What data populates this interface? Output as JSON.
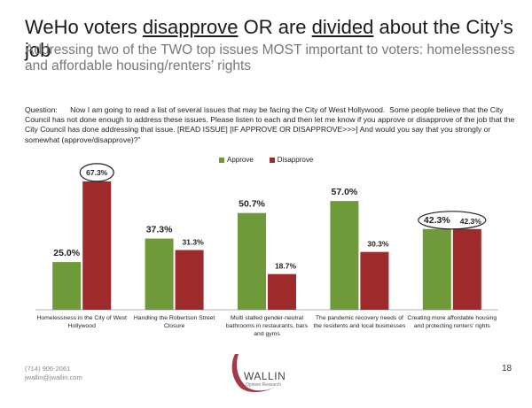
{
  "title": {
    "prefix": "WeHo voters ",
    "emph1": "disapprove",
    "mid": " OR are ",
    "emph2": "divided",
    "suffix": " about the City’s job"
  },
  "subtitle": "Addressing two of the TWO top issues MOST important to voters: homelessness and affordable housing/renters’ rights",
  "question": "Question:      Now I am going to read a list of several issues that may be facing the City of West Hollywood.  Some people believe that the City Council has not done enough to address these issues. Please listen to each and then let me know if you approve or disapprove of the job that the City Council has done addressing that issue. [READ ISSUE] [IF APPROVE OR DISAPPROVE>>>] And would you say that you strongly or somewhat (approve/disapprove)?”",
  "colors": {
    "approve": "#6f9a3a",
    "disapprove": "#9e2a2b"
  },
  "chart_data": {
    "type": "bar",
    "categories": [
      "Homelessness in the City of West Hollywood",
      "Handling the Robertson Street Closure",
      "Multi stalled gender-neutral bathrooms in restaurants, bars and gyms",
      "The pandemic recovery needs of the residents and local businesses",
      "Creating more affordable housing and protecting renters’ rights"
    ],
    "category_lines": [
      [
        "Homelessness in the City of West",
        "Hollywood"
      ],
      [
        "Handling the Robertson Street",
        "Closure"
      ],
      [
        "Multi stalled gender-neutral",
        "bathrooms in restaurants, bars",
        "and gyms"
      ],
      [
        "The pandemic recovery needs of",
        "the residents and local businesses"
      ],
      [
        "Creating more affordable housing",
        "and protecting renters’ rights"
      ]
    ],
    "series": [
      {
        "name": "Approve",
        "values": [
          25.0,
          37.3,
          50.7,
          57.0,
          42.3
        ],
        "labels": [
          "25.0%",
          "37.3%",
          "50.7%",
          "57.0%",
          "42.3%"
        ]
      },
      {
        "name": "Disapprove",
        "values": [
          67.3,
          31.3,
          18.7,
          30.3,
          42.3
        ],
        "labels": [
          "67.3%",
          "31.3%",
          "18.7%",
          "30.3%",
          "42.3%"
        ]
      }
    ],
    "ylim": [
      0,
      70
    ],
    "legend": "top-center",
    "grid": false
  },
  "footer": {
    "phone": "(714) 906-2061",
    "email": "jwallin@jwallin.com",
    "logo_text": "WALLIN",
    "logo_sub": "Opinion Research"
  },
  "page_number": "18"
}
